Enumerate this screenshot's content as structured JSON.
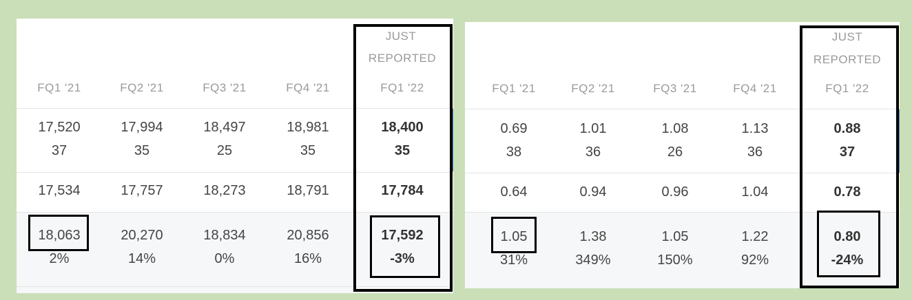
{
  "left": {
    "header": {
      "just_reported_line1": "JUST",
      "just_reported_line2": "REPORTED",
      "columns": [
        "FQ1 '21",
        "FQ2 '21",
        "FQ3 '21",
        "FQ4 '21",
        "FQ1 '22"
      ]
    },
    "rows": {
      "estimate": {
        "values": [
          "17,520",
          "17,994",
          "18,497",
          "18,981",
          "18,400"
        ],
        "counts": [
          "37",
          "35",
          "25",
          "35",
          "35"
        ]
      },
      "prior": {
        "values": [
          "17,534",
          "17,757",
          "18,273",
          "18,791",
          "17,784"
        ]
      },
      "actual": {
        "values": [
          "18,063",
          "20,270",
          "18,834",
          "20,856",
          "17,592"
        ],
        "changes": [
          "2%",
          "14%",
          "0%",
          "16%",
          "-3%"
        ]
      }
    }
  },
  "right": {
    "header": {
      "just_reported_line1": "JUST",
      "just_reported_line2": "REPORTED",
      "columns": [
        "FQ1 '21",
        "FQ2 '21",
        "FQ3 '21",
        "FQ4 '21",
        "FQ1 '22"
      ]
    },
    "rows": {
      "estimate": {
        "values": [
          "0.69",
          "1.01",
          "1.08",
          "1.13",
          "0.88"
        ],
        "counts": [
          "38",
          "36",
          "26",
          "36",
          "37"
        ]
      },
      "prior": {
        "values": [
          "0.64",
          "0.94",
          "0.96",
          "1.04",
          "0.78"
        ]
      },
      "actual": {
        "values": [
          "1.05",
          "1.38",
          "1.05",
          "1.22",
          "0.80"
        ],
        "changes": [
          "31%",
          "349%",
          "150%",
          "92%",
          "-24%"
        ]
      }
    }
  },
  "colors": {
    "background": "#cadfb8",
    "accent": "#4a86cf",
    "annotation": "#000000"
  }
}
